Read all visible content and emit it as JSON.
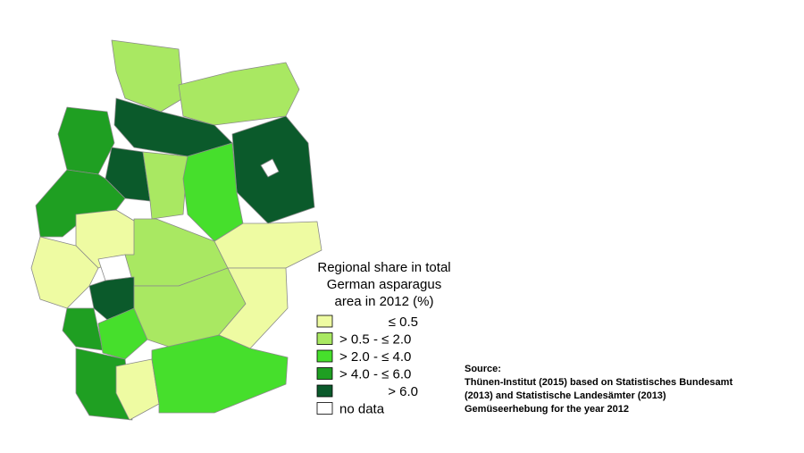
{
  "legend": {
    "title_lines": [
      "Regional share in total",
      "German asparagus",
      "area in 2012 (%)"
    ],
    "items": [
      {
        "label": "≤ 0.5",
        "color": "#eefba2"
      },
      {
        "label": "> 0.5 - ≤ 2.0",
        "color": "#a9e862"
      },
      {
        "label": "> 2.0 - ≤ 4.0",
        "color": "#46df2c"
      },
      {
        "label": "> 4.0 - ≤ 6.0",
        "color": "#1f9f22"
      },
      {
        "label": "> 6.0",
        "color": "#0b5a2b"
      },
      {
        "label": "no data",
        "color": "#ffffff"
      }
    ]
  },
  "source": {
    "heading": "Source:",
    "lines": [
      "Thünen-Institut (2015) based on Statistisches Bundesamt",
      "(2013) and Statistische Landesämter (2013)",
      "Gemüseerhebung for the year 2012"
    ]
  }
}
